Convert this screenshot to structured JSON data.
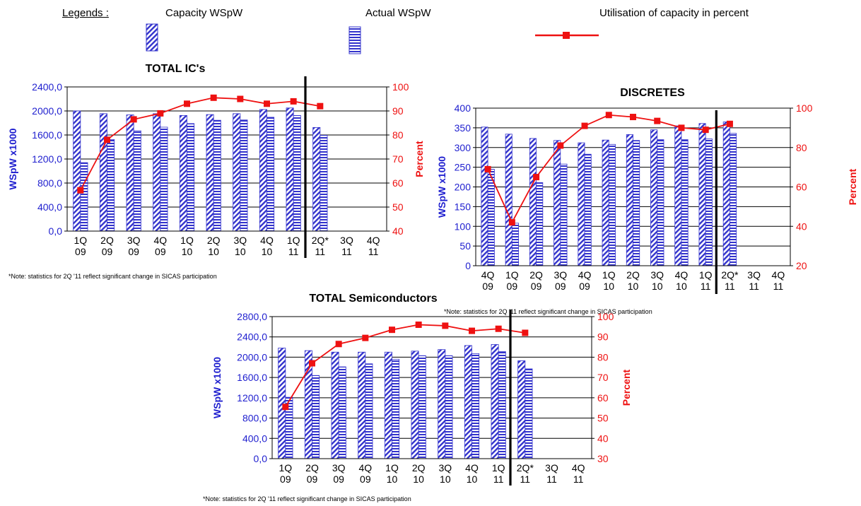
{
  "legend": {
    "heading": "Legends :",
    "capacity_label": "Capacity  WSpW",
    "actual_label": "Actual  WSpW",
    "utilisation_label": "Utilisation of capacity in percent"
  },
  "colors": {
    "bar_blue": "#3333cc",
    "line_red": "#ee1111",
    "left_axis_blue": "#1f1fcf",
    "right_axis_red": "#ee1111"
  },
  "chart_data": [
    {
      "type": "bar",
      "id": "ics",
      "title": "TOTAL IC's",
      "ylabel": "WSpW x1000",
      "y2label": "Percent",
      "ylim": [
        0,
        2400
      ],
      "y2lim": [
        40,
        100
      ],
      "yticks": [
        "0,0",
        "400,0",
        "800,0",
        "1200,0",
        "1600,0",
        "2000,0",
        "2400,0"
      ],
      "y2ticks": [
        "40",
        "50",
        "60",
        "70",
        "80",
        "90",
        "100"
      ],
      "categories": [
        [
          "1Q",
          "09"
        ],
        [
          "2Q",
          "09"
        ],
        [
          "3Q",
          "09"
        ],
        [
          "4Q",
          "09"
        ],
        [
          "1Q",
          "10"
        ],
        [
          "2Q",
          "10"
        ],
        [
          "3Q",
          "10"
        ],
        [
          "4Q",
          "10"
        ],
        [
          "1Q",
          "11"
        ],
        [
          "2Q*",
          "11"
        ],
        [
          "3Q",
          "11"
        ],
        [
          "4Q",
          "11"
        ]
      ],
      "separator_after_index": 8,
      "series": [
        {
          "name": "Capacity  WSpW",
          "values": [
            2000,
            1955,
            1935,
            1955,
            1925,
            1940,
            1955,
            2025,
            2050,
            1725,
            null,
            null
          ]
        },
        {
          "name": "Actual  WSpW",
          "values": [
            1140,
            1525,
            1670,
            1730,
            1790,
            1845,
            1850,
            1895,
            1925,
            1595,
            null,
            null
          ]
        },
        {
          "name": "Utilisation of capacity in percent",
          "values": [
            57,
            78,
            86.5,
            89,
            93,
            95.5,
            95,
            93,
            94,
            92,
            null,
            null
          ]
        }
      ],
      "note": "*Note:  statistics for 2Q '11 reflect significant change in SICAS participation"
    },
    {
      "type": "bar",
      "id": "discretes",
      "title": "DISCRETES",
      "ylabel": "WSpW x1000",
      "y2label": "Percent",
      "ylim": [
        0,
        400
      ],
      "y2lim": [
        20,
        100
      ],
      "yticks": [
        "0",
        "50",
        "100",
        "150",
        "200",
        "250",
        "300",
        "350",
        "400"
      ],
      "y2ticks": [
        "20",
        "40",
        "60",
        "80",
        "100"
      ],
      "categories": [
        [
          "4Q",
          "09"
        ],
        [
          "1Q",
          "09"
        ],
        [
          "2Q",
          "09"
        ],
        [
          "3Q",
          "09"
        ],
        [
          "4Q",
          "09"
        ],
        [
          "1Q",
          "10"
        ],
        [
          "2Q",
          "10"
        ],
        [
          "3Q",
          "10"
        ],
        [
          "4Q",
          "10"
        ],
        [
          "1Q",
          "11"
        ],
        [
          "2Q*",
          "11"
        ],
        [
          "3Q",
          "11"
        ],
        [
          "4Q",
          "11"
        ]
      ],
      "separator_after_index": 9,
      "series": [
        {
          "name": "Capacity  WSpW",
          "values": [
            352,
            334,
            323,
            318,
            312,
            319,
            333,
            345,
            355,
            361,
            365,
            null,
            null
          ]
        },
        {
          "name": "Actual  WSpW",
          "values": [
            245,
            108,
            211,
            258,
            283,
            308,
            318,
            320,
            320,
            322,
            336,
            null,
            null
          ]
        },
        {
          "name": "Utilisation of capacity in percent",
          "values": [
            69,
            42,
            65,
            81,
            91,
            96.5,
            95.5,
            93.5,
            90,
            89,
            92,
            null,
            null
          ]
        }
      ],
      "note": "*Note:  statistics for 2Q '11 reflect significant change in SICAS participation"
    },
    {
      "type": "bar",
      "id": "semis",
      "title": "TOTAL Semiconductors",
      "ylabel": "WSpW x1000",
      "y2label": "Percent",
      "ylim": [
        0,
        2800
      ],
      "y2lim": [
        30,
        100
      ],
      "yticks": [
        "0,0",
        "400,0",
        "800,0",
        "1200,0",
        "1600,0",
        "2000,0",
        "2400,0",
        "2800,0"
      ],
      "y2ticks": [
        "30",
        "40",
        "50",
        "60",
        "70",
        "80",
        "90",
        "100"
      ],
      "categories": [
        [
          "1Q",
          "09"
        ],
        [
          "2Q",
          "09"
        ],
        [
          "3Q",
          "09"
        ],
        [
          "4Q",
          "09"
        ],
        [
          "1Q",
          "10"
        ],
        [
          "2Q",
          "10"
        ],
        [
          "3Q",
          "10"
        ],
        [
          "4Q",
          "10"
        ],
        [
          "1Q",
          "11"
        ],
        [
          "2Q*",
          "11"
        ],
        [
          "3Q",
          "11"
        ],
        [
          "4Q",
          "11"
        ]
      ],
      "separator_after_index": 8,
      "series": [
        {
          "name": "Capacity  WSpW",
          "values": [
            2180,
            2130,
            2100,
            2100,
            2100,
            2120,
            2150,
            2230,
            2250,
            1930,
            null,
            null
          ]
        },
        {
          "name": "Actual  WSpW",
          "values": [
            1210,
            1640,
            1810,
            1870,
            1960,
            2030,
            2030,
            2070,
            2110,
            1770,
            null,
            null
          ]
        },
        {
          "name": "Utilisation of capacity in percent",
          "values": [
            55.5,
            77,
            86.5,
            89.5,
            93.5,
            96,
            95.5,
            93,
            94,
            92,
            null,
            null
          ]
        }
      ],
      "note": "*Note:  statistics for 2Q '11 reflect significant change in SICAS participation"
    }
  ]
}
